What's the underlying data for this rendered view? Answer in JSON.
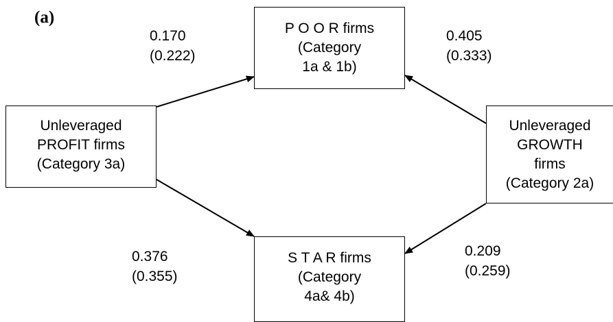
{
  "panel_label": "(a)",
  "nodes": {
    "poor": [
      "P O O R  firms",
      "(Category",
      "1a & 1b)"
    ],
    "profit": [
      "Unleveraged",
      "PROFIT firms",
      "(Category 3a)"
    ],
    "growth": [
      "Unleveraged",
      "GROWTH",
      "firms",
      "(Category 2a)"
    ],
    "star": [
      "S T A R firms",
      "(Category",
      "4a& 4b)"
    ]
  },
  "edges": {
    "profit_to_poor": {
      "value": "0.170",
      "paren": "(0.222)"
    },
    "growth_to_poor": {
      "value": "0.405",
      "paren": "(0.333)"
    },
    "profit_to_star": {
      "value": "0.376",
      "paren": "(0.355)"
    },
    "growth_to_star": {
      "value": "0.209",
      "paren": "(0.259)"
    }
  }
}
